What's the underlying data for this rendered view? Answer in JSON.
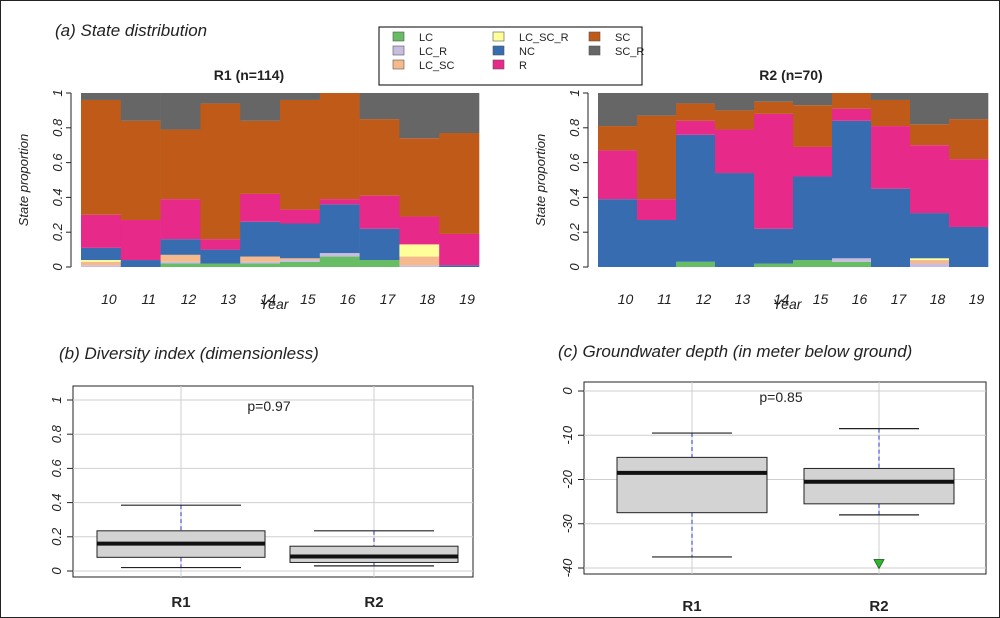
{
  "panel_a": {
    "title": "(a) State distribution",
    "legend": [
      {
        "key": "LC",
        "label": "LC",
        "color": "#66bd63"
      },
      {
        "key": "LC_R",
        "label": "LC_R",
        "color": "#c8bde0"
      },
      {
        "key": "LC_SC",
        "label": "LC_SC",
        "color": "#f5b98c"
      },
      {
        "key": "LC_SC_R",
        "label": "LC_SC_R",
        "color": "#ffff99"
      },
      {
        "key": "NC",
        "label": "NC",
        "color": "#386cb0"
      },
      {
        "key": "R",
        "label": "R",
        "color": "#e7298a"
      },
      {
        "key": "SC",
        "label": "SC",
        "color": "#c05a18"
      },
      {
        "key": "SC_R",
        "label": "SC_R",
        "color": "#666666"
      }
    ],
    "x_categories": [
      "10",
      "11",
      "12",
      "13",
      "14",
      "15",
      "16",
      "17",
      "18",
      "19"
    ],
    "xlabel": "Year",
    "ylabel": "State proportion",
    "y_ticks": [
      "0",
      "0.2",
      "0.4",
      "0.6",
      "0.8",
      "1"
    ]
  },
  "panel_b": {
    "title": "(b) Diversity index (dimensionless)",
    "pvalue": "p=0.97",
    "categories": [
      "R1",
      "R2"
    ],
    "y_ticks": [
      "0",
      "0.2",
      "0.4",
      "0.6",
      "0.8",
      "1"
    ]
  },
  "panel_c": {
    "title": "(c) Groundwater depth (in meter below ground)",
    "pvalue": "p=0.85",
    "categories": [
      "R1",
      "R2"
    ],
    "y_ticks": [
      "-40",
      "-30",
      "-20",
      "-10",
      "0"
    ]
  },
  "chart_data": [
    {
      "type": "bar",
      "stacked": true,
      "title": "R1 (n=114)",
      "xlabel": "Year",
      "ylabel": "State proportion",
      "ylim": [
        0,
        1
      ],
      "categories": [
        "10",
        "11",
        "12",
        "13",
        "14",
        "15",
        "16",
        "17",
        "18",
        "19"
      ],
      "series": [
        {
          "name": "LC",
          "values": [
            0.0,
            0.0,
            0.02,
            0.02,
            0.02,
            0.03,
            0.06,
            0.04,
            0.0,
            0.0
          ]
        },
        {
          "name": "LC_R",
          "values": [
            0.01,
            0.0,
            0.01,
            0.0,
            0.01,
            0.01,
            0.02,
            0.0,
            0.01,
            0.0
          ]
        },
        {
          "name": "LC_SC",
          "values": [
            0.02,
            0.0,
            0.04,
            0.0,
            0.03,
            0.01,
            0.0,
            0.0,
            0.05,
            0.0
          ]
        },
        {
          "name": "LC_SC_R",
          "values": [
            0.01,
            0.0,
            0.0,
            0.0,
            0.0,
            0.0,
            0.0,
            0.0,
            0.07,
            0.0
          ]
        },
        {
          "name": "NC",
          "values": [
            0.07,
            0.04,
            0.09,
            0.08,
            0.2,
            0.2,
            0.28,
            0.18,
            0.0,
            0.01
          ]
        },
        {
          "name": "R",
          "values": [
            0.19,
            0.23,
            0.23,
            0.06,
            0.16,
            0.08,
            0.03,
            0.19,
            0.16,
            0.18
          ]
        },
        {
          "name": "SC",
          "values": [
            0.66,
            0.57,
            0.4,
            0.78,
            0.42,
            0.63,
            0.61,
            0.44,
            0.45,
            0.58
          ]
        },
        {
          "name": "SC_R",
          "values": [
            0.04,
            0.16,
            0.21,
            0.06,
            0.16,
            0.04,
            0.0,
            0.15,
            0.26,
            0.23
          ]
        }
      ]
    },
    {
      "type": "bar",
      "stacked": true,
      "title": "R2 (n=70)",
      "xlabel": "Year",
      "ylabel": "State proportion",
      "ylim": [
        0,
        1
      ],
      "categories": [
        "10",
        "11",
        "12",
        "13",
        "14",
        "15",
        "16",
        "17",
        "18",
        "19"
      ],
      "series": [
        {
          "name": "LC",
          "values": [
            0.0,
            0.0,
            0.03,
            0.0,
            0.02,
            0.04,
            0.03,
            0.0,
            0.0,
            0.0
          ]
        },
        {
          "name": "LC_R",
          "values": [
            0.0,
            0.0,
            0.0,
            0.0,
            0.0,
            0.0,
            0.02,
            0.0,
            0.02,
            0.0
          ]
        },
        {
          "name": "LC_SC",
          "values": [
            0.0,
            0.0,
            0.0,
            0.0,
            0.0,
            0.0,
            0.0,
            0.0,
            0.02,
            0.0
          ]
        },
        {
          "name": "LC_SC_R",
          "values": [
            0.0,
            0.0,
            0.0,
            0.0,
            0.0,
            0.0,
            0.0,
            0.0,
            0.01,
            0.0
          ]
        },
        {
          "name": "NC",
          "values": [
            0.39,
            0.27,
            0.73,
            0.54,
            0.2,
            0.48,
            0.79,
            0.45,
            0.26,
            0.23
          ]
        },
        {
          "name": "R",
          "values": [
            0.28,
            0.12,
            0.08,
            0.25,
            0.66,
            0.17,
            0.07,
            0.36,
            0.39,
            0.39
          ]
        },
        {
          "name": "SC",
          "values": [
            0.14,
            0.48,
            0.1,
            0.11,
            0.07,
            0.24,
            0.09,
            0.15,
            0.12,
            0.23
          ]
        },
        {
          "name": "SC_R",
          "values": [
            0.19,
            0.13,
            0.06,
            0.1,
            0.05,
            0.07,
            0.0,
            0.04,
            0.18,
            0.15
          ]
        }
      ]
    },
    {
      "type": "box",
      "title": "",
      "ylim": [
        0,
        1
      ],
      "pvalue": "p=0.97",
      "categories": [
        "R1",
        "R2"
      ],
      "boxes": [
        {
          "name": "R1",
          "min": 0.02,
          "q1": 0.08,
          "median": 0.16,
          "q3": 0.235,
          "max": 0.385,
          "outliers": []
        },
        {
          "name": "R2",
          "min": 0.03,
          "q1": 0.05,
          "median": 0.085,
          "q3": 0.145,
          "max": 0.235,
          "outliers": []
        }
      ]
    },
    {
      "type": "box",
      "title": "",
      "ylim": [
        -40,
        0
      ],
      "pvalue": "p=0.85",
      "categories": [
        "R1",
        "R2"
      ],
      "boxes": [
        {
          "name": "R1",
          "min": -37.5,
          "q1": -27.5,
          "median": -18.5,
          "q3": -15,
          "max": -9.5,
          "outliers": []
        },
        {
          "name": "R2",
          "min": -28,
          "q1": -25.5,
          "median": -20.5,
          "q3": -17.5,
          "max": -8.5,
          "outliers": [
            -39
          ]
        }
      ]
    }
  ]
}
